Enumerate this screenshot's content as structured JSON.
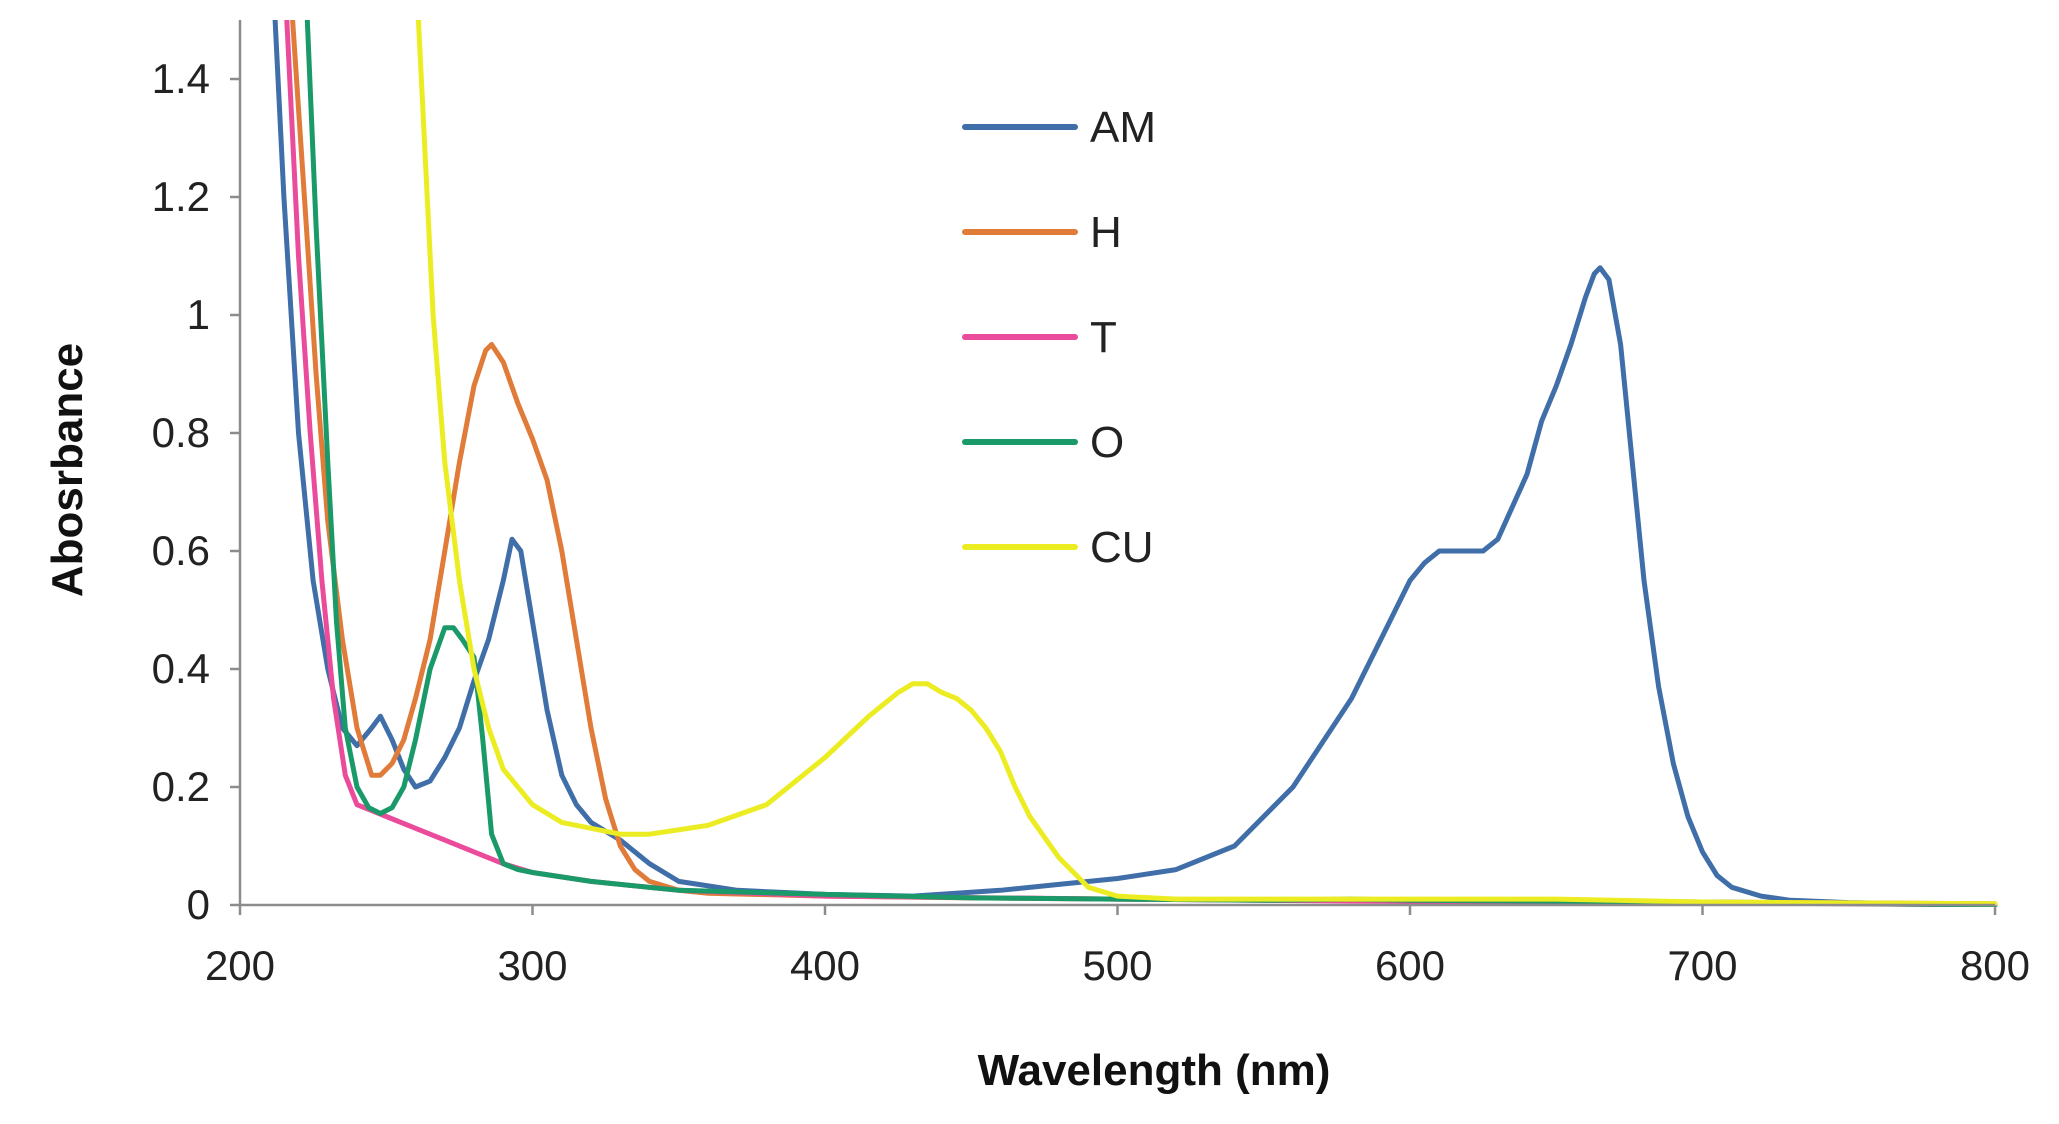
{
  "chart_data": {
    "type": "line",
    "title": "",
    "xlabel": "Wavelength (nm)",
    "ylabel": "Abosrbance",
    "xlim": [
      200,
      800
    ],
    "ylim": [
      0,
      1.5
    ],
    "xticks": [
      200,
      300,
      400,
      500,
      600,
      700,
      800
    ],
    "xtick_labels": [
      "200",
      "300",
      "400",
      "500",
      "600",
      "700",
      "800"
    ],
    "yticks": [
      0,
      0.2,
      0.4,
      0.6,
      0.8,
      1.0,
      1.2,
      1.4
    ],
    "ytick_labels": [
      "0",
      "0.2",
      "0.4",
      "0.6",
      "0.8",
      "1",
      "1.2",
      "1.4"
    ],
    "grid": false,
    "legend_position": "top-center",
    "series": [
      {
        "name": "AM",
        "color": "#3f6ea8",
        "x": [
          212,
          215,
          220,
          225,
          230,
          235,
          240,
          245,
          248,
          252,
          256,
          260,
          265,
          270,
          275,
          280,
          285,
          290,
          293,
          296,
          300,
          305,
          310,
          315,
          320,
          330,
          340,
          350,
          370,
          400,
          430,
          460,
          480,
          500,
          520,
          540,
          560,
          580,
          590,
          600,
          605,
          610,
          615,
          620,
          625,
          630,
          640,
          645,
          650,
          655,
          660,
          663,
          665,
          668,
          672,
          676,
          680,
          685,
          690,
          695,
          700,
          705,
          710,
          720,
          730,
          750,
          800
        ],
        "y": [
          1.5,
          1.2,
          0.8,
          0.55,
          0.4,
          0.3,
          0.27,
          0.3,
          0.32,
          0.28,
          0.23,
          0.2,
          0.21,
          0.25,
          0.3,
          0.38,
          0.45,
          0.55,
          0.62,
          0.6,
          0.48,
          0.33,
          0.22,
          0.17,
          0.14,
          0.11,
          0.07,
          0.04,
          0.025,
          0.018,
          0.015,
          0.025,
          0.035,
          0.045,
          0.06,
          0.1,
          0.2,
          0.35,
          0.45,
          0.55,
          0.58,
          0.6,
          0.6,
          0.6,
          0.6,
          0.62,
          0.73,
          0.82,
          0.88,
          0.95,
          1.03,
          1.07,
          1.08,
          1.06,
          0.95,
          0.75,
          0.55,
          0.37,
          0.24,
          0.15,
          0.09,
          0.05,
          0.03,
          0.015,
          0.008,
          0.004,
          0.0
        ]
      },
      {
        "name": "H",
        "color": "#e07b39",
        "x": [
          218,
          222,
          226,
          230,
          235,
          240,
          245,
          248,
          252,
          256,
          260,
          265,
          270,
          275,
          280,
          284,
          286,
          290,
          295,
          300,
          305,
          310,
          315,
          320,
          325,
          330,
          335,
          340,
          350,
          360,
          400,
          450,
          500,
          600,
          700,
          800
        ],
        "y": [
          1.5,
          1.2,
          0.9,
          0.65,
          0.45,
          0.3,
          0.22,
          0.22,
          0.24,
          0.28,
          0.35,
          0.45,
          0.6,
          0.75,
          0.88,
          0.94,
          0.95,
          0.92,
          0.85,
          0.79,
          0.72,
          0.6,
          0.45,
          0.3,
          0.18,
          0.1,
          0.06,
          0.04,
          0.025,
          0.02,
          0.015,
          0.012,
          0.01,
          0.008,
          0.005,
          0.002
        ]
      },
      {
        "name": "T",
        "color": "#ea4c9b",
        "x": [
          216,
          220,
          224,
          228,
          232,
          236,
          240,
          245,
          250,
          260,
          270,
          280,
          290,
          300,
          320,
          350,
          400,
          500,
          600,
          700,
          800
        ],
        "y": [
          1.5,
          1.1,
          0.8,
          0.55,
          0.35,
          0.22,
          0.17,
          0.16,
          0.15,
          0.13,
          0.11,
          0.09,
          0.07,
          0.055,
          0.04,
          0.025,
          0.015,
          0.01,
          0.006,
          0.004,
          0.0
        ]
      },
      {
        "name": "O",
        "color": "#1a9a68",
        "x": [
          223,
          226,
          230,
          233,
          236,
          240,
          244,
          248,
          252,
          256,
          260,
          265,
          270,
          273,
          276,
          280,
          283,
          286,
          290,
          295,
          300,
          320,
          350,
          400,
          450,
          500,
          550,
          580,
          600,
          700,
          800
        ],
        "y": [
          1.5,
          1.15,
          0.75,
          0.48,
          0.3,
          0.2,
          0.165,
          0.155,
          0.165,
          0.2,
          0.28,
          0.4,
          0.47,
          0.47,
          0.45,
          0.42,
          0.28,
          0.12,
          0.07,
          0.06,
          0.055,
          0.04,
          0.025,
          0.018,
          0.012,
          0.01,
          0.008,
          0.01,
          0.008,
          0.005,
          0.0
        ]
      },
      {
        "name": "CU",
        "color": "#ecec22",
        "x": [
          261,
          263,
          266,
          270,
          275,
          280,
          285,
          290,
          300,
          310,
          320,
          330,
          340,
          360,
          380,
          400,
          415,
          425,
          430,
          435,
          440,
          445,
          450,
          455,
          460,
          465,
          470,
          480,
          490,
          500,
          520,
          550,
          600,
          650,
          700,
          800
        ],
        "y": [
          1.5,
          1.3,
          1.0,
          0.75,
          0.55,
          0.4,
          0.3,
          0.23,
          0.17,
          0.14,
          0.13,
          0.12,
          0.12,
          0.135,
          0.17,
          0.25,
          0.32,
          0.36,
          0.375,
          0.375,
          0.36,
          0.35,
          0.33,
          0.3,
          0.26,
          0.2,
          0.15,
          0.08,
          0.03,
          0.015,
          0.01,
          0.01,
          0.01,
          0.01,
          0.005,
          0.002
        ]
      }
    ]
  }
}
